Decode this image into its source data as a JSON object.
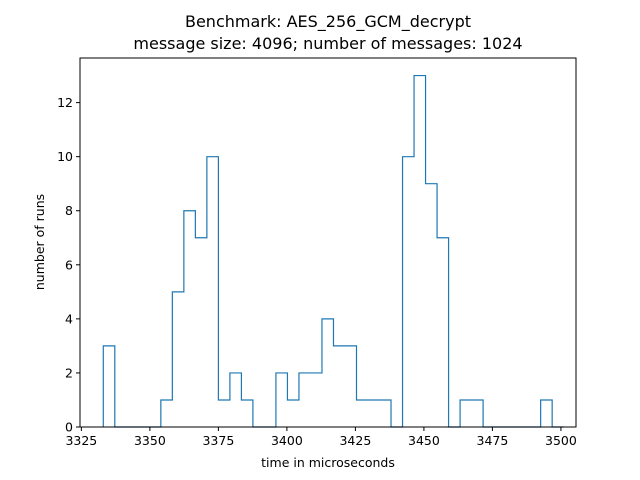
{
  "chart_data": {
    "type": "histogram-step",
    "title": "Benchmark: AES_256_GCM_decrypt",
    "subtitle": "message size: 4096; number of messages: 1024",
    "xlabel": "time in microseconds",
    "ylabel": "number of runs",
    "xlim": [
      3324.5,
      3505.5
    ],
    "ylim": [
      0,
      13.65
    ],
    "x_ticks": [
      3325,
      3350,
      3375,
      3400,
      3425,
      3450,
      3475,
      3500
    ],
    "y_ticks": [
      0,
      2,
      4,
      6,
      8,
      10,
      12
    ],
    "color": "#1f77b4",
    "bin_edges": [
      3333,
      3337.2,
      3341.4,
      3345.6,
      3349.8,
      3354,
      3358.2,
      3362.4,
      3366.6,
      3370.8,
      3375,
      3379.2,
      3383.4,
      3387.6,
      3391.8,
      3396,
      3400.2,
      3404.4,
      3408.6,
      3412.8,
      3417,
      3421.2,
      3425.4,
      3429.6,
      3433.8,
      3438,
      3442.2,
      3446.4,
      3450.6,
      3454.8,
      3459,
      3463.2,
      3467.4,
      3471.6,
      3475.8,
      3480,
      3484.2,
      3488.4,
      3492.6,
      3496.8,
      3501
    ],
    "counts": [
      3,
      0,
      0,
      0,
      0,
      1,
      5,
      8,
      7,
      10,
      1,
      2,
      1,
      0,
      0,
      2,
      1,
      2,
      2,
      4,
      3,
      3,
      1,
      1,
      1,
      0,
      10,
      13,
      9,
      7,
      0,
      1,
      1,
      0,
      0,
      0,
      0,
      0,
      1,
      0
    ],
    "grid": false,
    "legend": "none"
  }
}
